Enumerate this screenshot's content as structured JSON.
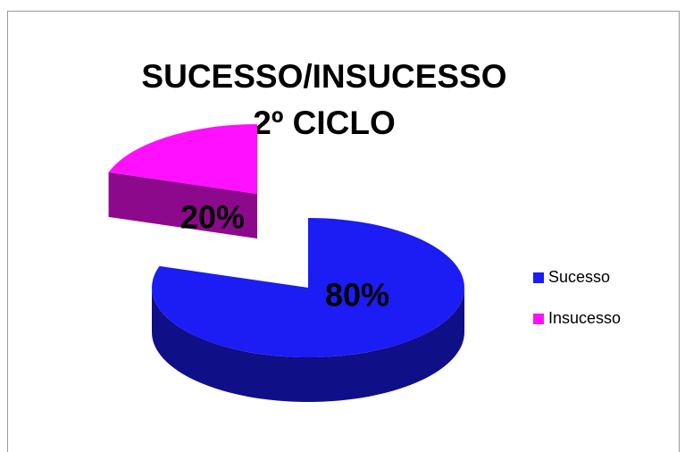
{
  "chart_data": {
    "type": "pie",
    "title": [
      "SUCESSO/INSUCESSO",
      "2º CICLO"
    ],
    "categories": [
      "Sucesso",
      "Insucesso"
    ],
    "values": [
      80,
      20
    ],
    "value_labels": [
      "80%",
      "20%"
    ],
    "colors": [
      "#1c1cf5",
      "#ff10ff"
    ],
    "legend": "right"
  }
}
